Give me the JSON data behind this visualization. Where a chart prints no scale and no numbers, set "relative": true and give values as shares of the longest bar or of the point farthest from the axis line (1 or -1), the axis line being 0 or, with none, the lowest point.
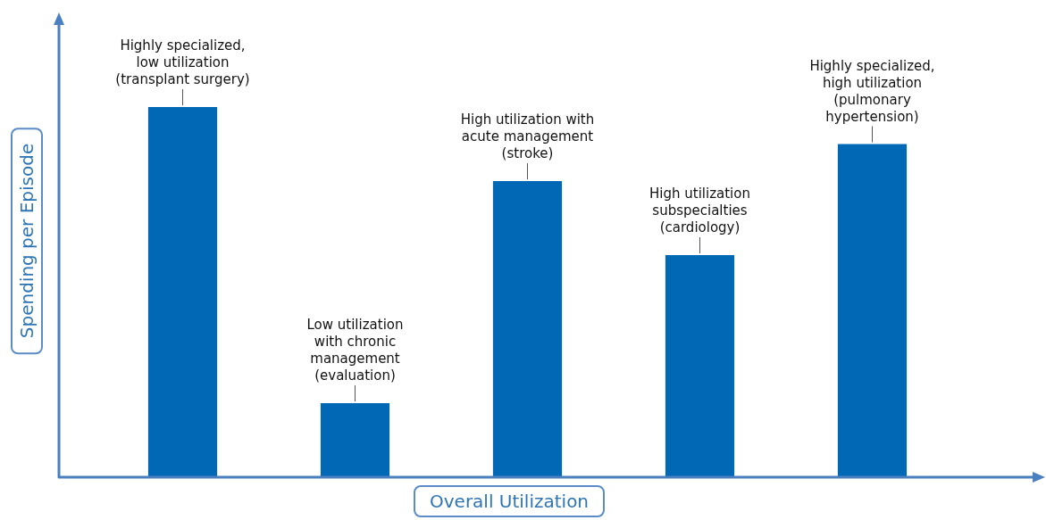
{
  "chart_data": {
    "type": "bar",
    "relative": true,
    "xlabel": "Overall Utilization",
    "ylabel": "Spending per Episode",
    "categories": [
      null,
      null,
      null,
      null,
      null
    ],
    "values": [
      1,
      0.2,
      0.8,
      0.6,
      0.9
    ],
    "color": "#0068b5",
    "annotations": [
      "Highly specialized,\nlow utilization\n(transplant surgery)",
      "Low utilization\nwith chronic\nmanagement\n(evaluation)",
      "High utilization with\nacute management\n(stroke)",
      "High utilization\nsubspecialties\n(cardiology)",
      "Highly specialized,\nhigh utilization\n(pulmonary\nhypertension)"
    ],
    "grid": false,
    "legend": false
  }
}
